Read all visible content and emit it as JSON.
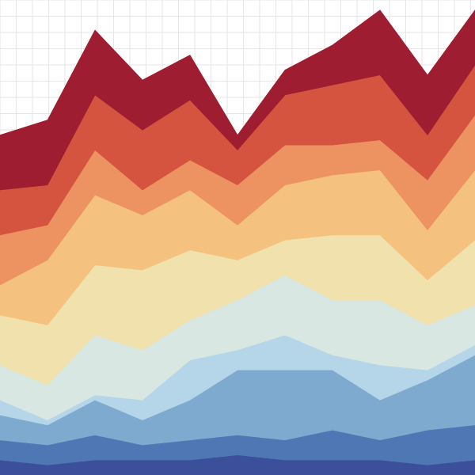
{
  "chart_data": {
    "type": "area",
    "stacked": true,
    "grid": true,
    "x": [
      0,
      1,
      2,
      3,
      4,
      5,
      6,
      7,
      8,
      9,
      10
    ],
    "series": [
      {
        "color": "#3b4f9b",
        "values": [
          3,
          2,
          3,
          3,
          3,
          4,
          3,
          3,
          3,
          2,
          3
        ]
      },
      {
        "color": "#4f77b3",
        "values": [
          4,
          4,
          5,
          3,
          4,
          4,
          4,
          6,
          4,
          7,
          7
        ]
      },
      {
        "color": "#7faad0",
        "values": [
          5,
          4,
          7,
          5,
          8,
          13,
          14,
          12,
          8,
          10,
          14
        ]
      },
      {
        "color": "#b5d6e8",
        "values": [
          3,
          1,
          1,
          4,
          8,
          4,
          7,
          3,
          7,
          2,
          2
        ]
      },
      {
        "color": "#d8e7e1",
        "values": [
          7,
          7,
          12,
          10,
          8,
          10,
          12,
          11,
          13,
          9,
          8
        ]
      },
      {
        "color": "#f0e1ad",
        "values": [
          10,
          12,
          14,
          16,
          14,
          8,
          7,
          13,
          13,
          9,
          13
        ]
      },
      {
        "color": "#f4c27e",
        "values": [
          6,
          13,
          14,
          11,
          12,
          7,
          11,
          12,
          13,
          10,
          14
        ]
      },
      {
        "color": "#ed9261",
        "values": [
          10,
          7,
          9,
          5,
          6,
          8,
          8,
          6,
          6,
          10,
          11
        ]
      },
      {
        "color": "#d4543f",
        "values": [
          9,
          8,
          11,
          12,
          12,
          7,
          10,
          12,
          13,
          9,
          10
        ]
      },
      {
        "color": "#9e1d30",
        "values": [
          11,
          13,
          13,
          10,
          9,
          3,
          5,
          8,
          13,
          12,
          11
        ]
      }
    ],
    "ylim": [
      0,
      95
    ],
    "xlabel": "",
    "ylabel": "",
    "title": ""
  }
}
